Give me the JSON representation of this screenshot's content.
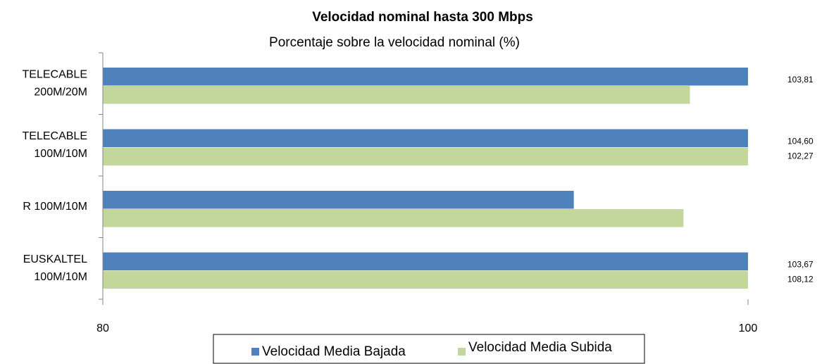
{
  "chart_data": {
    "type": "bar",
    "orientation": "horizontal",
    "title": "Velocidad nominal hasta 300 Mbps",
    "subtitle": "Porcentaje sobre la velocidad nominal (%)",
    "categories": [
      "TELECABLE\n200M/20M",
      "TELECABLE\n100M/10M",
      "R 100M/10M",
      "EUSKALTEL\n100M/10M"
    ],
    "series": [
      {
        "name": "Velocidad Media Bajada",
        "color": "#4f81bd",
        "values": [
          103.81,
          104.6,
          94.6,
          103.67
        ],
        "value_labels": [
          "103,81",
          "104,60",
          null,
          "103,67"
        ]
      },
      {
        "name": "Velocidad Media Subida",
        "color": "#c3d69b",
        "values": [
          98.2,
          102.27,
          98.0,
          108.12
        ],
        "value_labels": [
          null,
          "102,27",
          null,
          "108,12"
        ]
      }
    ],
    "xlim": [
      80,
      100
    ],
    "xticks": [
      80,
      100
    ],
    "legend": "bottom"
  }
}
